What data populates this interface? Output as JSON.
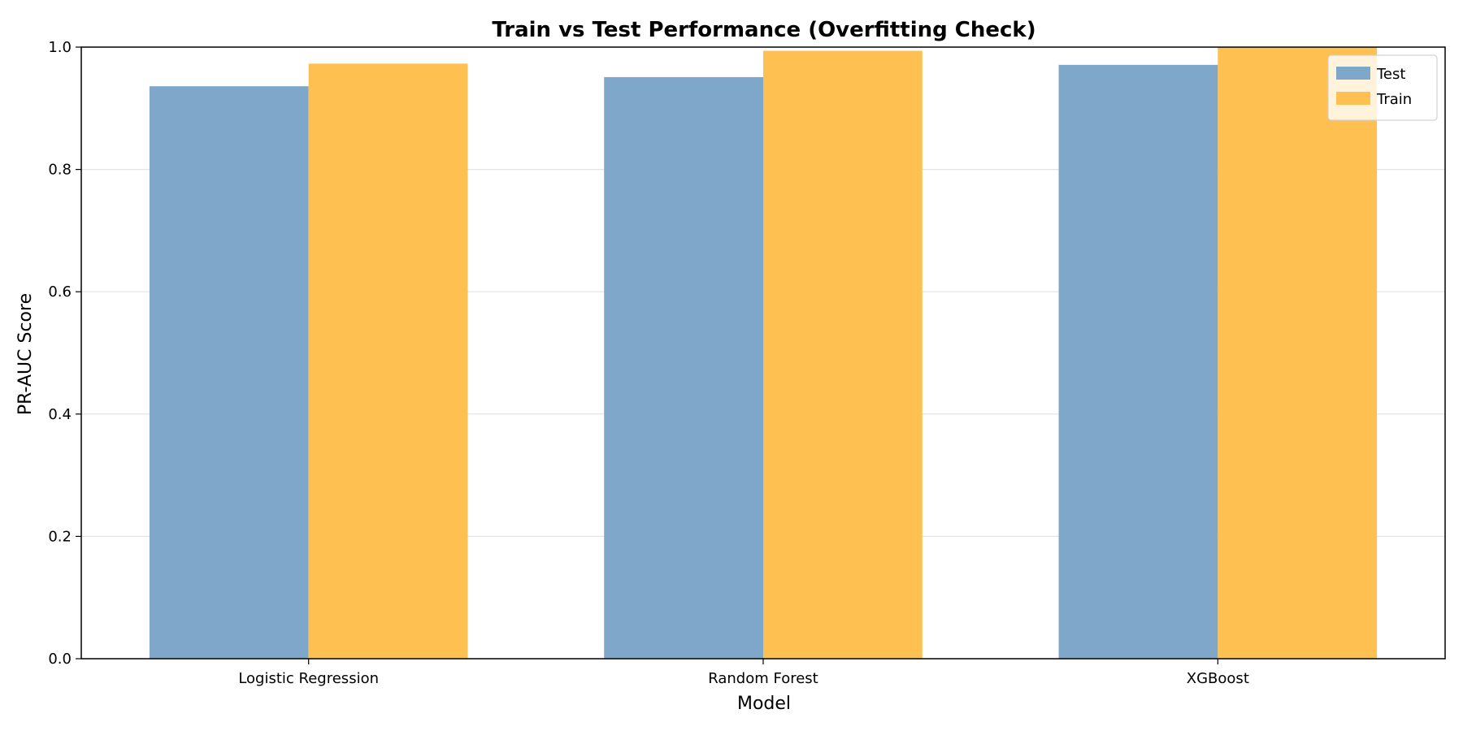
{
  "chart_data": {
    "type": "bar",
    "title": "Train vs Test Performance (Overfitting Check)",
    "xlabel": "Model",
    "ylabel": "PR-AUC Score",
    "categories": [
      "Logistic Regression",
      "Random Forest",
      "XGBoost"
    ],
    "series": [
      {
        "name": "Test",
        "color": "#7ea7ca",
        "values": [
          0.936,
          0.951,
          0.971
        ]
      },
      {
        "name": "Train",
        "color": "#fec050",
        "values": [
          0.973,
          0.994,
          1.0
        ]
      }
    ],
    "ylim": [
      0,
      1.0
    ],
    "yticks": [
      "0.0",
      "0.2",
      "0.4",
      "0.6",
      "0.8",
      "1.0"
    ],
    "grid": "horizontal",
    "legend_position": "top-right"
  }
}
